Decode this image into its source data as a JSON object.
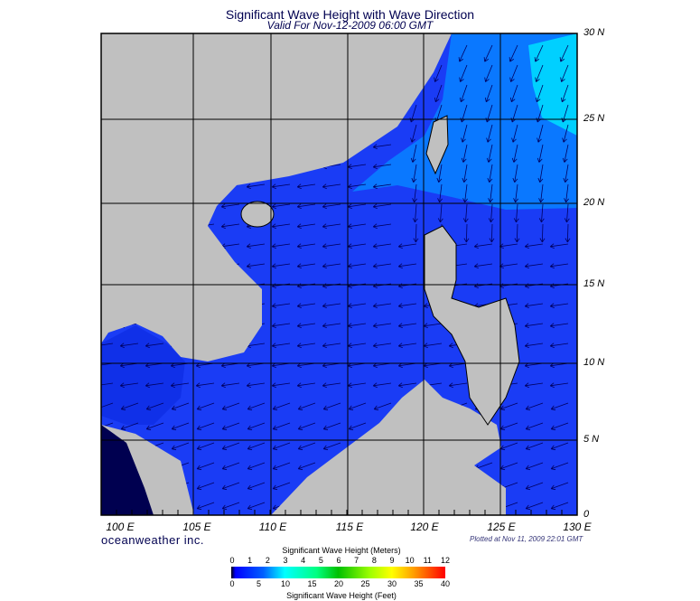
{
  "title": "Significant Wave Height with Wave Direction",
  "subtitle": "Valid For Nov-12-2009 06:00 GMT",
  "lat_labels": [
    "30 N",
    "25 N",
    "20 N",
    "15 N",
    "10 N",
    "5 N",
    "0"
  ],
  "lon_labels": [
    "100 E",
    "105 E",
    "110 E",
    "115 E",
    "120 E",
    "125 E",
    "130 E"
  ],
  "brand": "oceanweather inc.",
  "plotted": "Plotted at Nov 11, 2009 22:01 GMT",
  "colorbar": {
    "meters_title": "Significant Wave Height (Meters)",
    "meters_ticks": [
      "0",
      "1",
      "2",
      "3",
      "4",
      "5",
      "6",
      "7",
      "8",
      "9",
      "10",
      "11",
      "12"
    ],
    "feet_title": "Significant Wave Height (Feet)",
    "feet_ticks": [
      "0",
      "5",
      "10",
      "15",
      "20",
      "25",
      "30",
      "35",
      "40"
    ]
  },
  "colors": {
    "land": "#c0c0c0",
    "sea_low": "#1a3cf5",
    "sea_mid": "#0a78ff",
    "sea_high": "#00d8ff",
    "arrow": "#000060"
  }
}
